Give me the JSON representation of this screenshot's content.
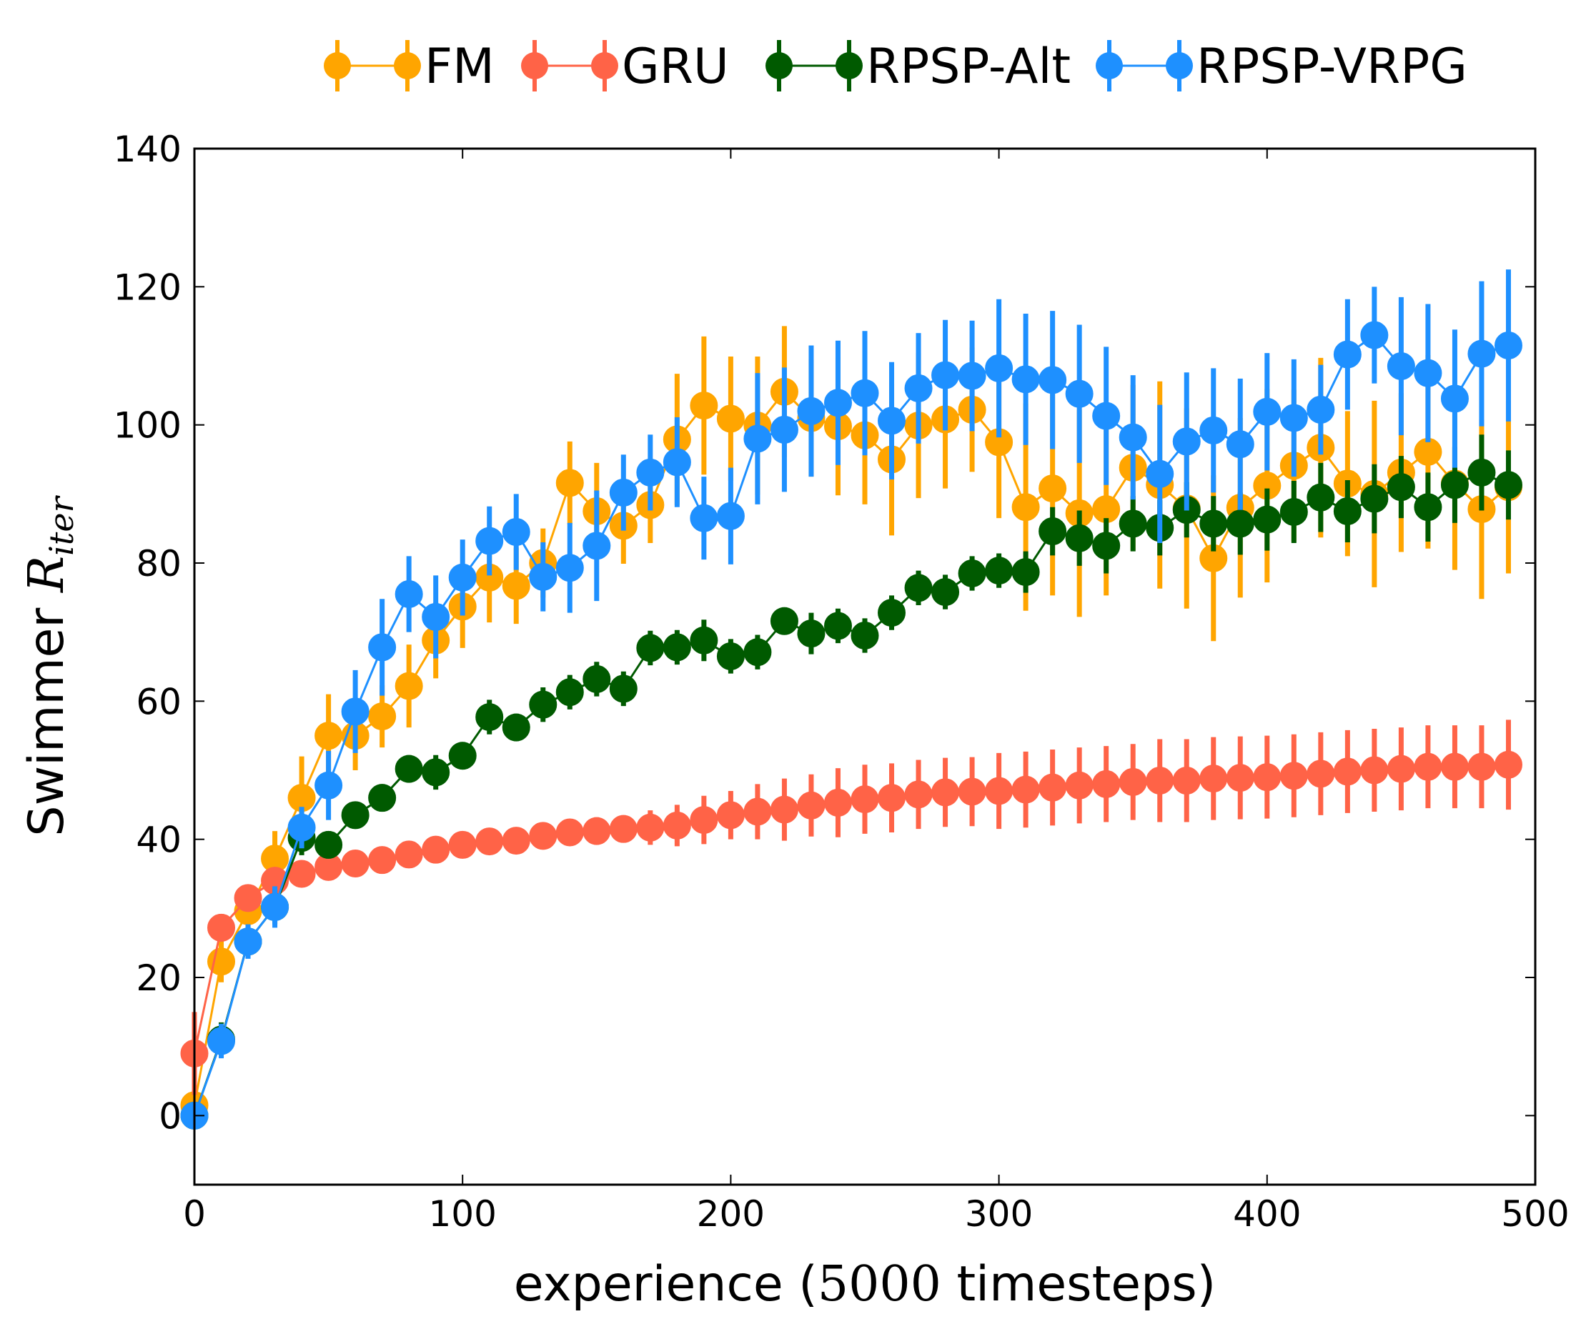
{
  "chart_data": {
    "type": "line",
    "title": "",
    "xlabel_parts": {
      "prefix": "experience (",
      "math": "5000",
      "suffix": " timesteps)"
    },
    "ylabel_parts": {
      "prefix": "Swimmer ",
      "math": "R",
      "subscript": "iter"
    },
    "xlim": [
      0,
      500
    ],
    "ylim": [
      -10,
      140
    ],
    "xticks": [
      0,
      100,
      200,
      300,
      400,
      500
    ],
    "yticks": [
      0,
      20,
      40,
      60,
      80,
      100,
      120,
      140
    ],
    "xtick_labels": [
      "0",
      "100",
      "200",
      "300",
      "400",
      "500"
    ],
    "ytick_labels": [
      "0",
      "20",
      "40",
      "60",
      "80",
      "100",
      "120",
      "140"
    ],
    "legend_position": "top (above plot, right-aligned)",
    "x": [
      0,
      10,
      20,
      30,
      40,
      50,
      60,
      70,
      80,
      90,
      100,
      110,
      120,
      130,
      140,
      150,
      160,
      170,
      180,
      190,
      200,
      210,
      220,
      230,
      240,
      250,
      260,
      270,
      280,
      290,
      300,
      310,
      320,
      330,
      340,
      350,
      360,
      370,
      380,
      390,
      400,
      410,
      420,
      430,
      440,
      450,
      460,
      470,
      480,
      490
    ],
    "series": [
      {
        "name": "FM",
        "color": "#ffa500",
        "values": [
          1.5,
          22.3,
          29.6,
          37.2,
          46.0,
          55.0,
          55.0,
          57.8,
          62.2,
          68.8,
          73.7,
          77.9,
          76.7,
          80.0,
          91.6,
          87.5,
          85.4,
          88.4,
          97.9,
          102.8,
          100.9,
          99.9,
          104.8,
          101.0,
          99.8,
          98.5,
          95.0,
          99.9,
          100.8,
          102.2,
          97.5,
          88.1,
          90.8,
          87.2,
          87.8,
          93.8,
          91.3,
          87.9,
          80.7,
          88.0,
          91.2,
          94.1,
          96.7,
          91.5,
          90.0,
          93.1,
          96.1,
          91.5,
          87.8,
          91.0
        ],
        "errors": [
          1.5,
          3.0,
          3.5,
          4.0,
          6.0,
          6.0,
          5.0,
          4.5,
          6.0,
          5.5,
          6.0,
          6.5,
          5.5,
          5.0,
          6.0,
          7.0,
          5.5,
          5.5,
          9.5,
          10.0,
          9.0,
          10.0,
          9.5,
          8.5,
          10.0,
          10.0,
          11.0,
          10.5,
          10.0,
          9.0,
          11.0,
          15.0,
          15.5,
          15.0,
          12.5,
          12.0,
          15.0,
          14.5,
          12.0,
          13.0,
          14.0,
          11.0,
          13.0,
          10.5,
          13.5,
          11.5,
          14.0,
          12.5,
          13.0,
          12.5
        ]
      },
      {
        "name": "GRU",
        "color": "#ff6347",
        "values": [
          9.0,
          27.2,
          31.5,
          34.0,
          35.0,
          36.0,
          36.5,
          37.0,
          37.8,
          38.5,
          39.2,
          39.7,
          39.8,
          40.5,
          41.0,
          41.2,
          41.5,
          41.7,
          42.0,
          42.8,
          43.5,
          44.0,
          44.3,
          44.9,
          45.3,
          45.8,
          46.0,
          46.5,
          46.8,
          46.9,
          47.0,
          47.2,
          47.5,
          47.8,
          48.0,
          48.3,
          48.5,
          48.5,
          48.8,
          48.9,
          49.0,
          49.2,
          49.5,
          49.8,
          50.0,
          50.2,
          50.5,
          50.5,
          50.5,
          50.8
        ],
        "errors": [
          6.0,
          2.0,
          1.5,
          1.5,
          1.5,
          1.5,
          1.5,
          1.5,
          1.5,
          1.5,
          1.5,
          1.5,
          1.5,
          1.5,
          1.5,
          2.0,
          2.0,
          2.5,
          3.0,
          3.5,
          3.5,
          4.0,
          4.5,
          4.5,
          5.0,
          5.0,
          5.0,
          5.0,
          5.0,
          5.0,
          5.5,
          5.5,
          5.5,
          5.5,
          5.5,
          5.5,
          6.0,
          6.0,
          6.0,
          6.0,
          6.0,
          6.0,
          6.0,
          6.0,
          6.0,
          6.0,
          6.0,
          6.0,
          6.0,
          6.5
        ]
      },
      {
        "name": "RPSP-Alt",
        "color": "#005a00",
        "values": [
          0.0,
          11.0,
          25.2,
          30.2,
          40.2,
          39.2,
          43.5,
          46.0,
          50.2,
          49.7,
          52.1,
          57.7,
          56.2,
          59.5,
          61.3,
          63.2,
          61.8,
          67.7,
          67.8,
          68.8,
          66.5,
          67.1,
          71.6,
          69.8,
          70.9,
          69.5,
          72.8,
          76.4,
          75.8,
          78.5,
          78.9,
          78.7,
          84.6,
          83.6,
          82.5,
          85.7,
          85.1,
          87.7,
          85.7,
          85.7,
          86.3,
          87.4,
          89.5,
          87.5,
          89.3,
          91.0,
          88.1,
          91.3,
          93.1,
          91.3
        ],
        "errors": [
          0.5,
          2.5,
          2.0,
          2.5,
          2.5,
          2.0,
          1.5,
          2.0,
          2.0,
          2.5,
          2.0,
          2.5,
          2.0,
          2.5,
          2.5,
          2.5,
          2.5,
          2.5,
          2.5,
          3.0,
          2.5,
          2.5,
          2.0,
          3.0,
          2.5,
          2.5,
          2.5,
          2.5,
          2.5,
          2.5,
          2.5,
          3.0,
          3.5,
          4.0,
          4.0,
          4.0,
          4.0,
          4.0,
          4.0,
          4.5,
          4.5,
          4.5,
          5.0,
          4.5,
          5.0,
          4.5,
          5.0,
          5.5,
          5.5,
          5.0
        ]
      },
      {
        "name": "RPSP-VRPG",
        "color": "#1e90ff",
        "values": [
          0.0,
          10.8,
          25.2,
          30.2,
          41.7,
          47.8,
          58.5,
          67.8,
          75.5,
          72.2,
          77.9,
          83.2,
          84.5,
          78.0,
          79.3,
          82.5,
          90.2,
          93.1,
          94.6,
          86.5,
          86.8,
          98.0,
          99.3,
          102.0,
          103.2,
          104.6,
          100.6,
          105.3,
          107.2,
          107.1,
          108.2,
          106.6,
          106.5,
          104.5,
          101.3,
          98.2,
          92.9,
          97.6,
          99.2,
          97.2,
          101.9,
          101.0,
          102.2,
          110.2,
          113.0,
          108.5,
          107.5,
          103.8,
          110.3,
          111.5
        ],
        "errors": [
          0.5,
          2.5,
          2.5,
          3.0,
          3.0,
          5.0,
          6.0,
          7.0,
          5.5,
          6.0,
          5.5,
          5.0,
          5.5,
          5.0,
          6.5,
          8.0,
          5.5,
          5.5,
          6.5,
          6.0,
          7.0,
          9.5,
          9.0,
          9.5,
          9.0,
          9.0,
          8.5,
          8.0,
          8.0,
          8.0,
          10.0,
          9.5,
          10.0,
          10.0,
          10.0,
          9.0,
          10.0,
          10.0,
          9.0,
          9.5,
          8.5,
          8.5,
          6.5,
          8.0,
          7.0,
          10.0,
          10.0,
          10.0,
          10.5,
          11.0
        ]
      }
    ]
  }
}
